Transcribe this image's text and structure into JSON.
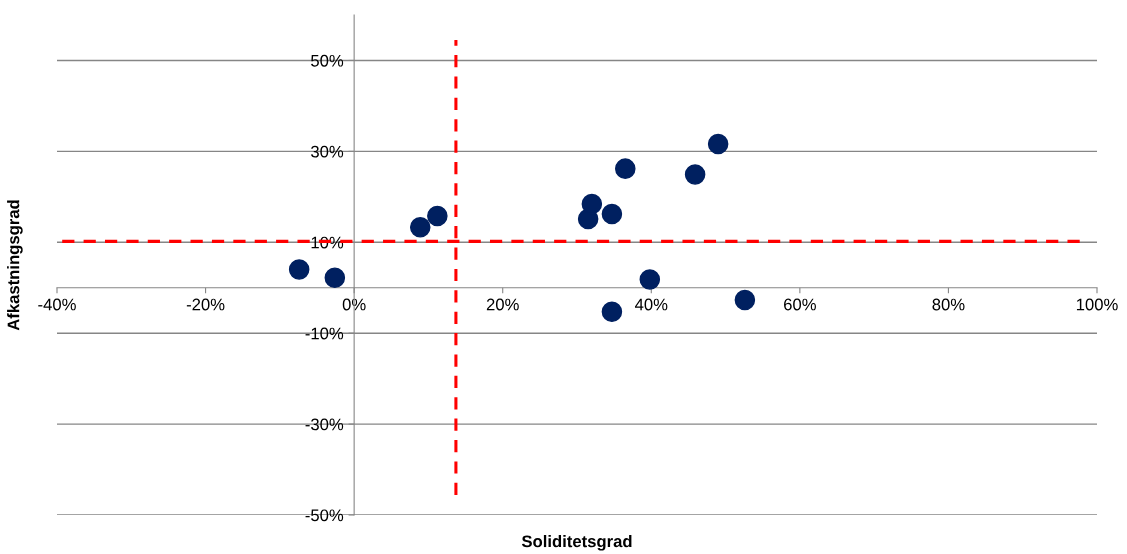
{
  "chart_data": {
    "type": "scatter",
    "xlabel": "Soliditetsgrad",
    "ylabel": "Afkastningsgrad",
    "x": [
      -7.4,
      -2.6,
      8.9,
      11.2,
      31.5,
      32.0,
      34.7,
      36.5,
      34.7,
      39.8,
      45.9,
      49.0,
      52.6
    ],
    "series": [
      {
        "color": "#002060",
        "values": [
          4.0,
          2.2,
          13.3,
          15.8,
          15.1,
          18.4,
          16.2,
          26.2,
          -5.3,
          1.8,
          24.9,
          31.6,
          -2.7
        ]
      }
    ],
    "marker": "circle",
    "xlim": [
      -40,
      100
    ],
    "xticks": [
      {
        "value": -40,
        "label": "-40%"
      },
      {
        "value": -20,
        "label": "-20%"
      },
      {
        "value": 0,
        "label": "0%"
      },
      {
        "value": 20,
        "label": "20%"
      },
      {
        "value": 40,
        "label": "40%"
      },
      {
        "value": 60,
        "label": "60%"
      },
      {
        "value": 80,
        "label": "80%"
      },
      {
        "value": 100,
        "label": "100%"
      }
    ],
    "ylim": [
      -50,
      60
    ],
    "yticks": [
      {
        "value": -50,
        "label": "-50%"
      },
      {
        "value": -30,
        "label": "-30%"
      },
      {
        "value": -10,
        "label": "-10%"
      },
      {
        "value": 10,
        "label": "10%"
      },
      {
        "value": 30,
        "label": "30%"
      },
      {
        "value": 50,
        "label": "50%"
      }
    ],
    "grid": "y",
    "ref_lines": [
      {
        "axis": "x",
        "value": 13.7,
        "color": "#ff0000",
        "line_style": "dashed"
      },
      {
        "axis": "y",
        "value": 10.2,
        "color": "#ff0000",
        "line_style": "dashed"
      }
    ]
  }
}
